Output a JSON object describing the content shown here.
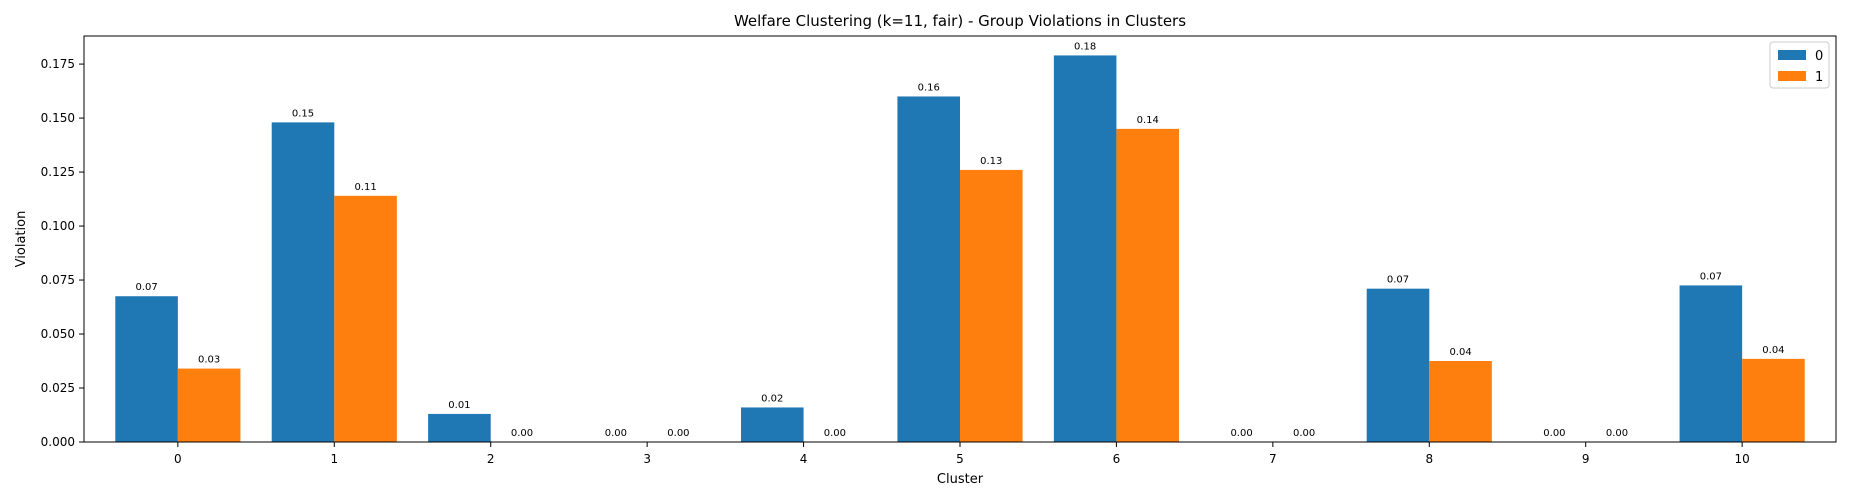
{
  "chart_data": {
    "type": "bar",
    "title": "Welfare Clustering (k=11, fair) - Group Violations in Clusters",
    "xlabel": "Cluster",
    "ylabel": "Violation",
    "categories": [
      "0",
      "1",
      "2",
      "3",
      "4",
      "5",
      "6",
      "7",
      "8",
      "9",
      "10"
    ],
    "series": [
      {
        "name": "0",
        "color": "#1f77b4",
        "values": [
          0.0675,
          0.148,
          0.013,
          0.0,
          0.016,
          0.16,
          0.179,
          0.0,
          0.071,
          0.0,
          0.0725
        ],
        "labels": [
          "0.07",
          "0.15",
          "0.01",
          "0.00",
          "0.02",
          "0.16",
          "0.18",
          "0.00",
          "0.07",
          "0.00",
          "0.07"
        ]
      },
      {
        "name": "1",
        "color": "#ff7f0e",
        "values": [
          0.034,
          0.114,
          0.0,
          0.0,
          0.0,
          0.126,
          0.145,
          0.0,
          0.0375,
          0.0,
          0.0385
        ],
        "labels": [
          "0.03",
          "0.11",
          "0.00",
          "0.00",
          "0.00",
          "0.13",
          "0.14",
          "0.00",
          "0.04",
          "0.00",
          "0.04"
        ]
      }
    ],
    "ylim": [
      0,
      0.188
    ],
    "yticks": [
      "0.000",
      "0.025",
      "0.050",
      "0.075",
      "0.100",
      "0.125",
      "0.150",
      "0.175"
    ],
    "legend_position": "top-right",
    "grid": false
  }
}
